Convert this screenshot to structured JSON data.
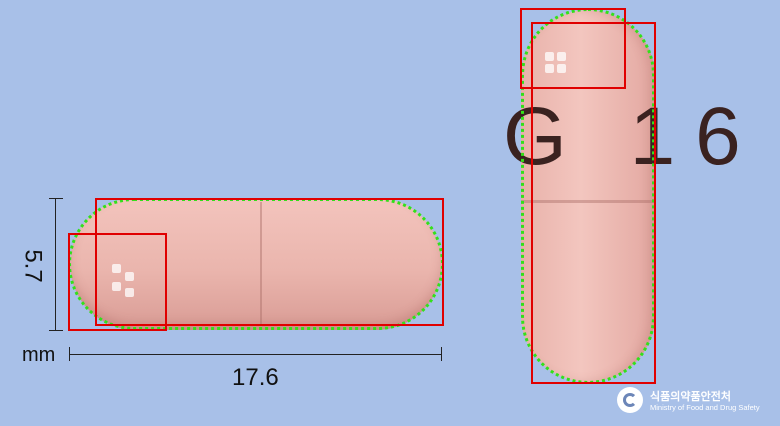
{
  "imprint": "G 16",
  "dimensions": {
    "height_label": "5.7",
    "unit_label": "mm",
    "length_label": "17.6"
  },
  "logo": {
    "korean": "식품의약품안전처",
    "english": "Ministry of Food and Drug Safety"
  },
  "colors": {
    "background": "#a8c0e8",
    "capsule": "#eab5ad",
    "box": "#e00000",
    "outline": "#33e01a"
  }
}
